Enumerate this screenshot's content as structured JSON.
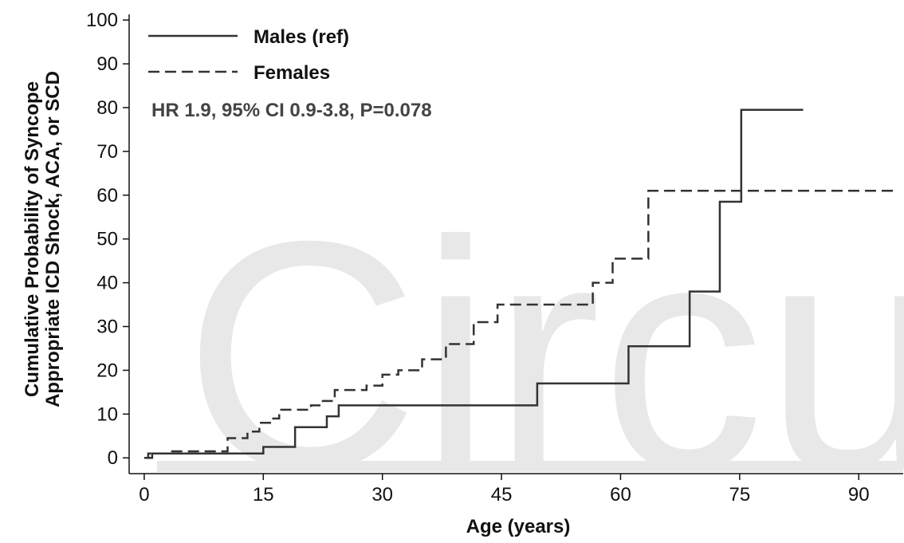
{
  "chart_data": {
    "type": "step",
    "watermark": "Circu",
    "x_label": "Age (years)",
    "y_label": [
      "Cumulative Probability of Syncope",
      "Appropriate ICD Shock, ACA, or SCD"
    ],
    "annotation": "HR 1.9, 95% CI 0.9-3.8, P=0.078",
    "xlim": [
      -1.9,
      95.6
    ],
    "ylim": [
      -3.6,
      101.3
    ],
    "xticks": [
      0,
      15,
      30,
      45,
      60,
      75,
      90
    ],
    "yticks": [
      0,
      10,
      20,
      30,
      40,
      50,
      60,
      70,
      80,
      90,
      100
    ],
    "series": [
      {
        "name": "Males (ref)",
        "color": "#333333",
        "dash": "solid",
        "x": [
          0,
          1,
          15,
          19,
          23,
          24.5,
          49.5,
          61,
          68.7,
          72.5,
          75.2,
          83
        ],
        "values": [
          0,
          1,
          2.5,
          7,
          9.5,
          12,
          17,
          25.5,
          38,
          58.5,
          79.5,
          79.5
        ]
      },
      {
        "name": "Females",
        "color": "#333333",
        "dash": "dashed",
        "x": [
          0,
          0.5,
          3,
          10.5,
          13,
          14.5,
          16,
          17,
          21,
          22.5,
          24,
          28,
          30,
          32,
          35,
          38,
          41.5,
          44.5,
          56.5,
          59,
          63.5,
          95
        ],
        "values": [
          0,
          1,
          1.5,
          4.5,
          6,
          8,
          9,
          11,
          12,
          13,
          15.5,
          16.5,
          19,
          20,
          22.5,
          26,
          31,
          35,
          40,
          45.5,
          61,
          61
        ]
      }
    ]
  }
}
